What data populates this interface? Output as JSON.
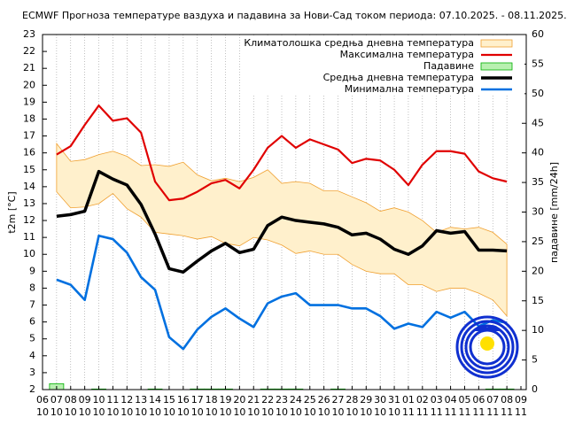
{
  "chart_data": {
    "type": "line",
    "title": "ECMWF Прогноза температуре ваздуха и падавина за Нови-Сад током периода: 07.10.2025. - 08.11.2025.",
    "ylabel": "t2m [°C]",
    "y2label": "падавине [mm/24h]",
    "categories": [
      "06",
      "07",
      "08",
      "09",
      "10",
      "11",
      "12",
      "13",
      "14",
      "15",
      "16",
      "17",
      "18",
      "19",
      "20",
      "21",
      "22",
      "23",
      "24",
      "25",
      "26",
      "27",
      "28",
      "29",
      "30",
      "31",
      "01",
      "02",
      "03",
      "04",
      "05",
      "06",
      "07",
      "08",
      "09"
    ],
    "category_months": [
      "10",
      "10",
      "10",
      "10",
      "10",
      "10",
      "10",
      "10",
      "10",
      "10",
      "10",
      "10",
      "10",
      "10",
      "10",
      "10",
      "10",
      "10",
      "10",
      "10",
      "10",
      "10",
      "10",
      "10",
      "10",
      "10",
      "11",
      "11",
      "11",
      "11",
      "11",
      "11",
      "11",
      "11",
      "11"
    ],
    "ylim": [
      2,
      23
    ],
    "yticks": [
      2,
      3,
      4,
      5,
      6,
      7,
      8,
      9,
      10,
      11,
      12,
      13,
      14,
      15,
      16,
      17,
      18,
      19,
      20,
      21,
      22,
      23
    ],
    "y2lim": [
      0,
      60
    ],
    "y2ticks": [
      0,
      5,
      10,
      15,
      20,
      25,
      30,
      35,
      40,
      45,
      50,
      55,
      60
    ],
    "grid": "vertical",
    "legend": "top-right",
    "series": [
      {
        "name": "Климатолошка средња дневна температура",
        "kind": "band",
        "color": "#f0a030",
        "fill": "#fff0cc",
        "upper": [
          null,
          16.55,
          15.5,
          15.6,
          15.9,
          16.1,
          15.8,
          15.25,
          15.3,
          15.2,
          15.45,
          14.7,
          14.35,
          14.5,
          14.3,
          14.55,
          15.0,
          14.2,
          14.3,
          14.2,
          13.75,
          13.75,
          13.4,
          13.05,
          12.55,
          12.75,
          12.5,
          12.0,
          11.3,
          11.6,
          11.5,
          11.6,
          11.3,
          10.6,
          null
        ],
        "lower": [
          null,
          13.7,
          12.75,
          12.8,
          13.0,
          13.6,
          12.7,
          12.2,
          11.3,
          11.2,
          11.1,
          10.9,
          11.05,
          10.65,
          10.5,
          11.0,
          10.85,
          10.55,
          10.05,
          10.2,
          10.0,
          10.0,
          9.4,
          9.0,
          8.85,
          8.85,
          8.2,
          8.2,
          7.8,
          8.0,
          8.0,
          7.7,
          7.3,
          6.35,
          null
        ]
      },
      {
        "name": "Максимална температура",
        "kind": "line",
        "color": "#e00000",
        "width": 2.2,
        "values": [
          null,
          15.9,
          16.4,
          17.65,
          18.8,
          17.9,
          18.05,
          17.2,
          14.3,
          13.2,
          13.3,
          13.7,
          14.2,
          14.4,
          13.9,
          15.0,
          16.3,
          17.0,
          16.3,
          16.8,
          16.5,
          16.2,
          15.4,
          15.65,
          15.55,
          15.0,
          14.1,
          15.3,
          16.1,
          16.1,
          15.95,
          14.9,
          14.5,
          14.3,
          null
        ]
      },
      {
        "name": "Падавине",
        "kind": "bar",
        "axis": "y2",
        "color": "#00b000",
        "fill": "#b8f0b0",
        "values": [
          null,
          1.0,
          0,
          0,
          0.1,
          0,
          0,
          0,
          0.1,
          0,
          0,
          0.1,
          0.1,
          0.1,
          0,
          0,
          0.1,
          0.1,
          0.1,
          0,
          0,
          0.1,
          0,
          0,
          0,
          0,
          0,
          0,
          0,
          0,
          0,
          0,
          0.1,
          0.1,
          null
        ]
      },
      {
        "name": "Средња дневна температура",
        "kind": "line",
        "color": "#000000",
        "width": 3.5,
        "values": [
          null,
          12.25,
          12.35,
          12.55,
          14.9,
          14.45,
          14.1,
          12.95,
          11.2,
          9.15,
          8.95,
          9.6,
          10.2,
          10.65,
          10.1,
          10.3,
          11.7,
          12.2,
          12.0,
          11.9,
          11.8,
          11.6,
          11.15,
          11.25,
          10.9,
          10.3,
          10.0,
          10.5,
          11.4,
          11.25,
          11.35,
          10.25,
          10.25,
          10.2,
          null
        ]
      },
      {
        "name": "Минимална температура",
        "kind": "line",
        "color": "#0070e0",
        "width": 2.6,
        "values": [
          null,
          8.5,
          8.2,
          7.3,
          11.1,
          10.9,
          10.1,
          8.65,
          7.9,
          5.1,
          4.4,
          5.55,
          6.3,
          6.8,
          6.2,
          5.7,
          7.1,
          7.5,
          7.7,
          7.0,
          7.0,
          7.0,
          6.8,
          6.8,
          6.35,
          5.6,
          5.9,
          5.7,
          6.6,
          6.25,
          6.6,
          5.75,
          6.1,
          5.95,
          null
        ]
      }
    ]
  }
}
